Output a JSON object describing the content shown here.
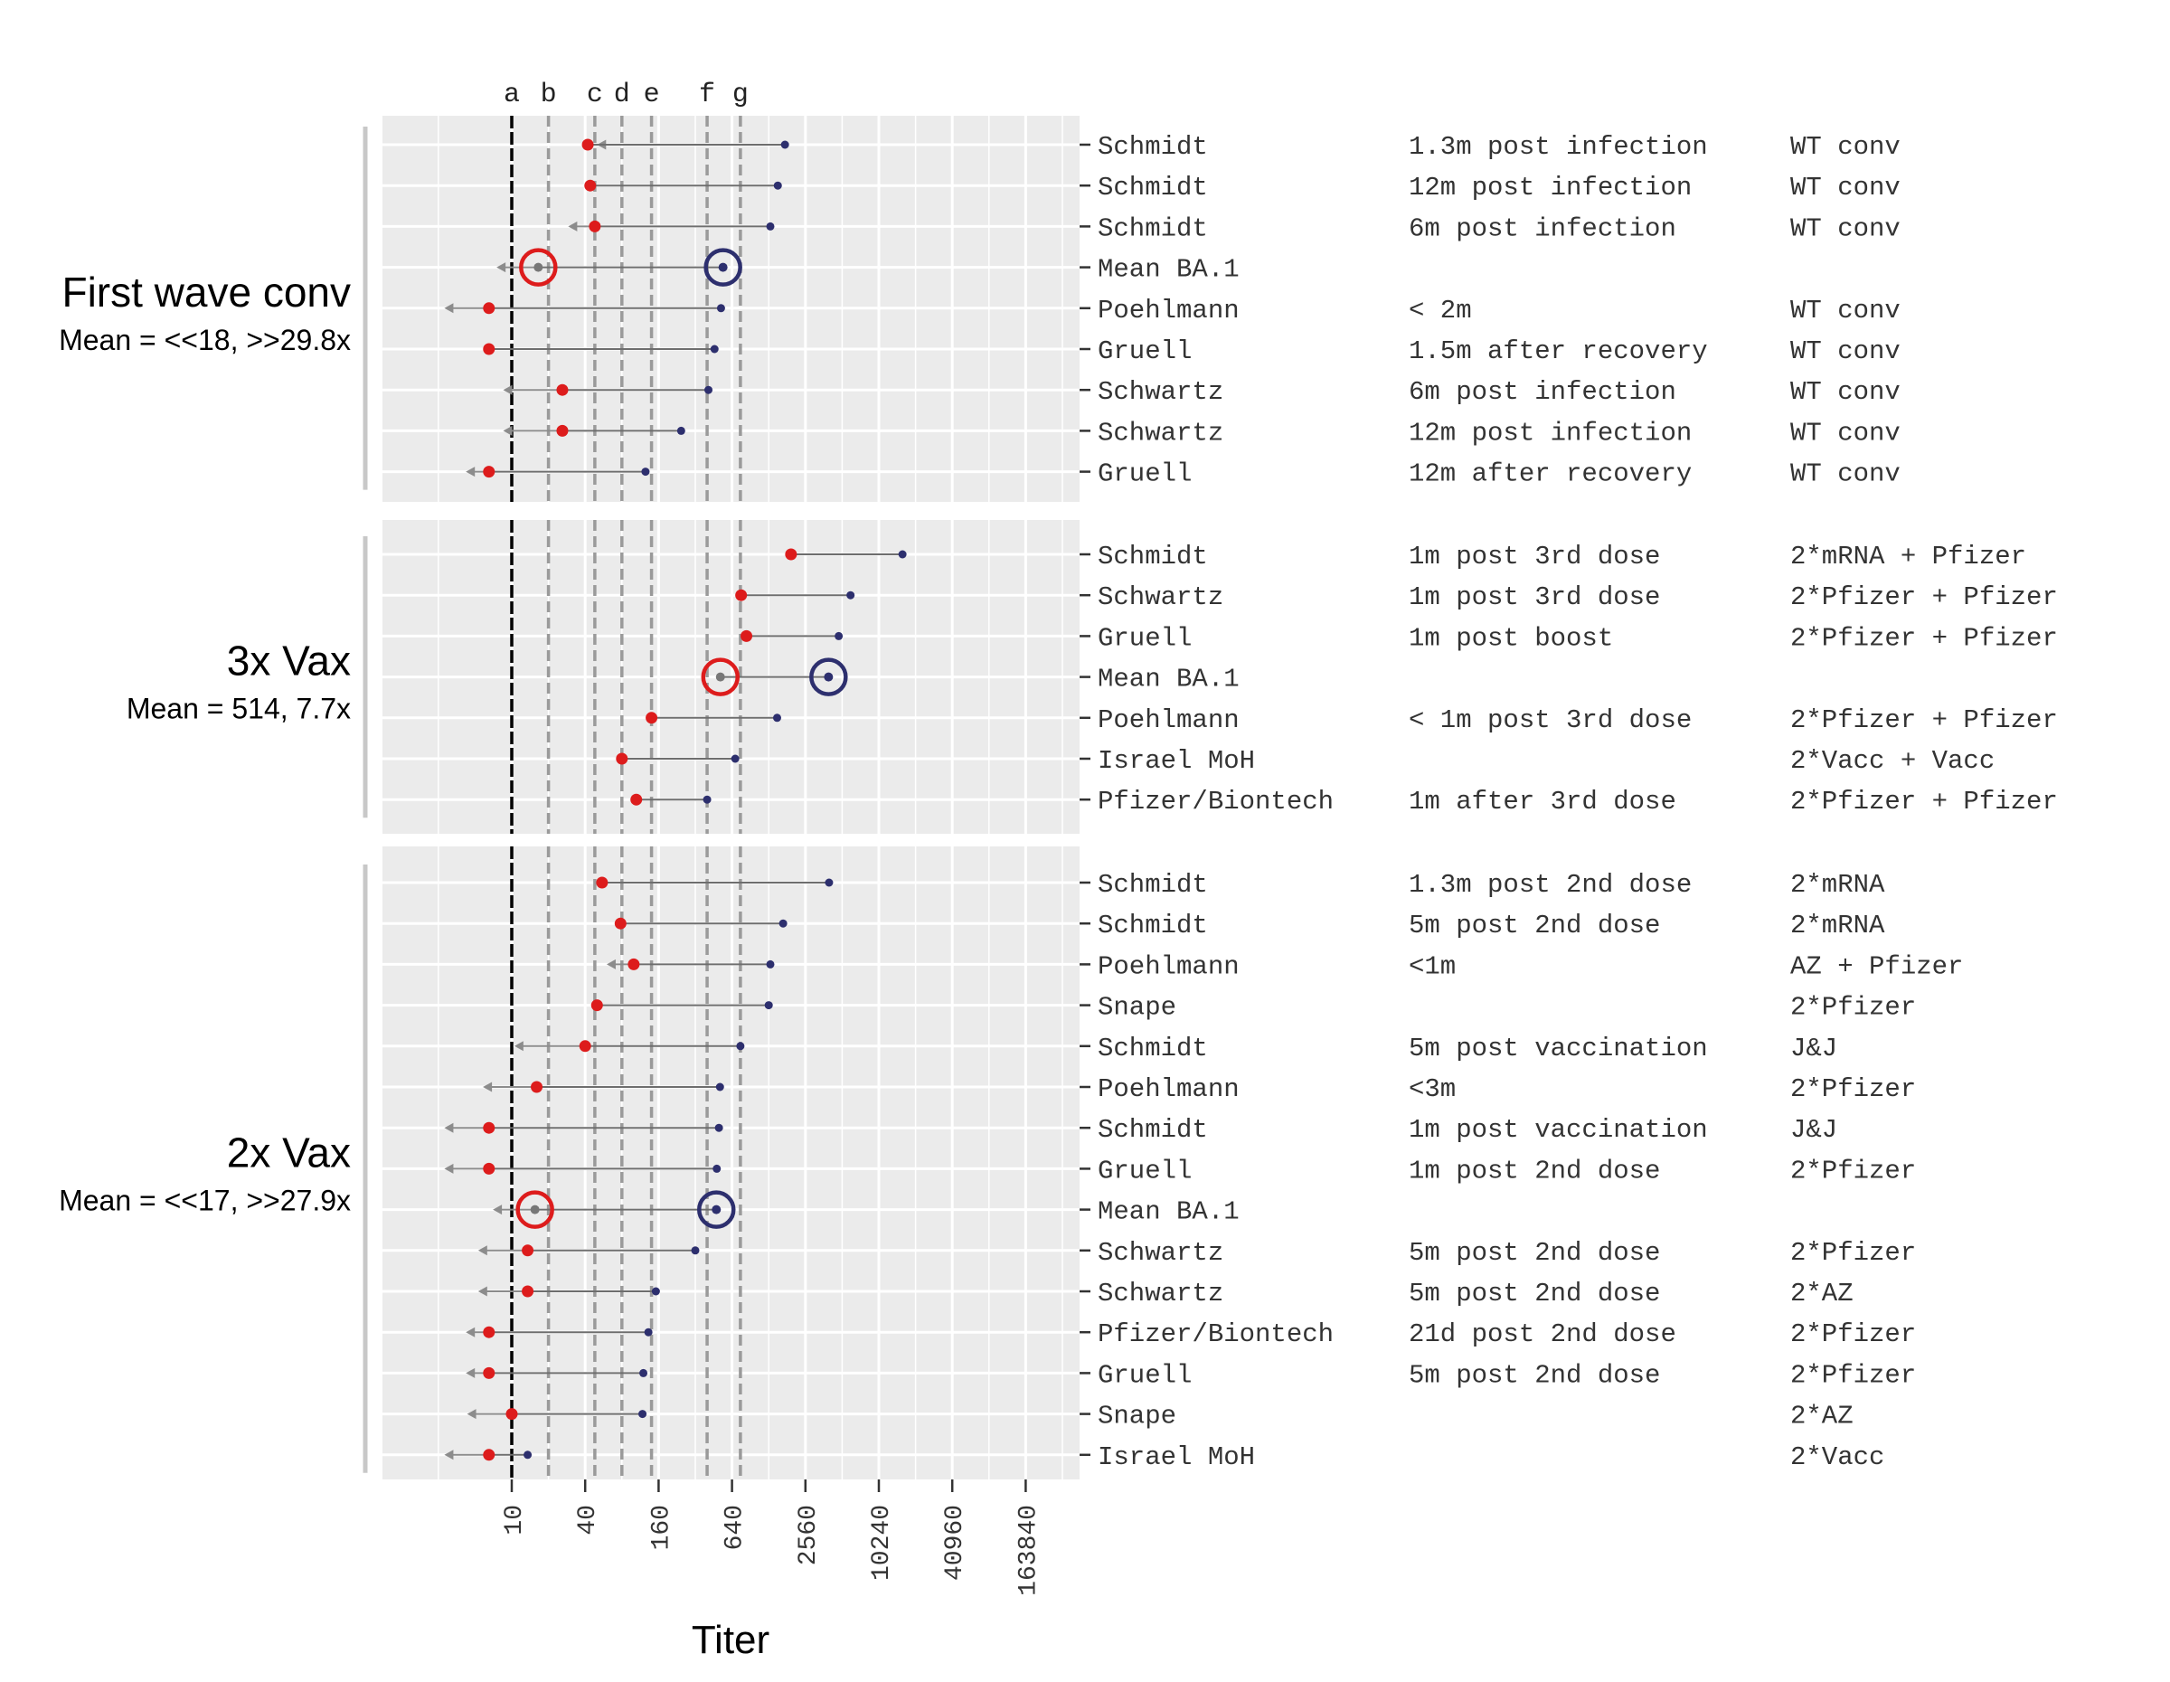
{
  "chart_data": {
    "type": "dumbbell",
    "xlabel": "Titer",
    "x_scale": "log2",
    "x_ticks": [
      10,
      40,
      160,
      640,
      2560,
      10240,
      40960,
      163840
    ],
    "reference_lines": [
      {
        "label": "a",
        "x": 10,
        "style": "solid-black"
      },
      {
        "label": "b",
        "x": 20,
        "style": "dashed-grey"
      },
      {
        "label": "c",
        "x": 48,
        "style": "dashed-grey"
      },
      {
        "label": "d",
        "x": 80,
        "style": "dashed-grey"
      },
      {
        "label": "e",
        "x": 140,
        "style": "dashed-grey"
      },
      {
        "label": "f",
        "x": 400,
        "style": "dashed-grey"
      },
      {
        "label": "g",
        "x": 750,
        "style": "dashed-grey"
      }
    ],
    "colors": {
      "ba1_point": "#dd1c1c",
      "wt_point": "#2d2f6e",
      "segment": "#6e6e6e",
      "arrow": "#8c8c8c",
      "panel_bg": "#ebebeb",
      "grid": "#ffffff"
    },
    "groups": [
      {
        "title": "First wave conv",
        "mean_label": "Mean = <<18, >>29.8x",
        "rows": [
          {
            "study": "Schmidt",
            "timing": "1.3m post infection",
            "regimen": "WT conv",
            "ba1": 42,
            "wt": 1740,
            "arrow_to": 50
          },
          {
            "study": "Schmidt",
            "timing": "12m post infection",
            "regimen": "WT conv",
            "ba1": 44,
            "wt": 1520,
            "arrow_to": null
          },
          {
            "study": "Schmidt",
            "timing": "6m post infection",
            "regimen": "WT conv",
            "ba1": 48,
            "wt": 1320,
            "arrow_to": 29
          },
          {
            "study": "Mean BA.1",
            "timing": "",
            "regimen": "",
            "ba1": 16.5,
            "wt": 540,
            "arrow_to": 7.5,
            "is_mean": true
          },
          {
            "study": "Poehlmann",
            "timing": "< 2m",
            "regimen": "WT conv",
            "ba1": 6.5,
            "wt": 520,
            "arrow_to": 2.8
          },
          {
            "study": "Gruell",
            "timing": "1.5m after recovery",
            "regimen": "WT conv",
            "ba1": 6.5,
            "wt": 460,
            "arrow_to": null
          },
          {
            "study": "Schwartz",
            "timing": "6m post infection",
            "regimen": "WT conv",
            "ba1": 26,
            "wt": 410,
            "arrow_to": 8.5
          },
          {
            "study": "Schwartz",
            "timing": "12m post infection",
            "regimen": "WT conv",
            "ba1": 26,
            "wt": 245,
            "arrow_to": 8.5
          },
          {
            "study": "Gruell",
            "timing": "12m after recovery",
            "regimen": "WT conv",
            "ba1": 6.5,
            "wt": 125,
            "arrow_to": 4.2
          }
        ]
      },
      {
        "title": "3x Vax",
        "mean_label": "Mean = 514, 7.7x",
        "rows": [
          {
            "study": "Schmidt",
            "timing": "1m post 3rd dose",
            "regimen": "2*mRNA + Pfizer",
            "ba1": 1950,
            "wt": 16000,
            "arrow_to": null
          },
          {
            "study": "Schwartz",
            "timing": "1m post 3rd dose",
            "regimen": "2*Pfizer + Pfizer",
            "ba1": 760,
            "wt": 6000,
            "arrow_to": null
          },
          {
            "study": "Gruell",
            "timing": "1m post boost",
            "regimen": "2*Pfizer + Pfizer",
            "ba1": 840,
            "wt": 4800,
            "arrow_to": null
          },
          {
            "study": "Mean BA.1",
            "timing": "",
            "regimen": "",
            "ba1": 514,
            "wt": 3960,
            "arrow_to": null,
            "is_mean": true
          },
          {
            "study": "Poehlmann",
            "timing": "< 1m post 3rd dose",
            "regimen": "2*Pfizer + Pfizer",
            "ba1": 140,
            "wt": 1500,
            "arrow_to": null
          },
          {
            "study": "Israel MoH",
            "timing": "",
            "regimen": "2*Vacc + Vacc",
            "ba1": 80,
            "wt": 680,
            "arrow_to": null
          },
          {
            "study": "Pfizer/Biontech",
            "timing": "1m after 3rd dose",
            "regimen": "2*Pfizer + Pfizer",
            "ba1": 105,
            "wt": 400,
            "arrow_to": null
          }
        ]
      },
      {
        "title": "2x Vax",
        "mean_label": "Mean = <<17, >>27.9x",
        "rows": [
          {
            "study": "Schmidt",
            "timing": "1.3m post 2nd dose",
            "regimen": "2*mRNA",
            "ba1": 55,
            "wt": 4000,
            "arrow_to": null
          },
          {
            "study": "Schmidt",
            "timing": "5m post 2nd dose",
            "regimen": "2*mRNA",
            "ba1": 78,
            "wt": 1680,
            "arrow_to": null
          },
          {
            "study": "Poehlmann",
            "timing": "<1m",
            "regimen": "AZ + Pfizer",
            "ba1": 100,
            "wt": 1320,
            "arrow_to": 60
          },
          {
            "study": "Snape",
            "timing": "",
            "regimen": "2*Pfizer",
            "ba1": 50,
            "wt": 1280,
            "arrow_to": null
          },
          {
            "study": "Schmidt",
            "timing": "5m post vaccination",
            "regimen": "J&J",
            "ba1": 40,
            "wt": 750,
            "arrow_to": 10.5
          },
          {
            "study": "Poehlmann",
            "timing": "<3m",
            "regimen": "2*Pfizer",
            "ba1": 16,
            "wt": 510,
            "arrow_to": 5.8
          },
          {
            "study": "Schmidt",
            "timing": "1m post vaccination",
            "regimen": "J&J",
            "ba1": 6.5,
            "wt": 500,
            "arrow_to": 2.8
          },
          {
            "study": "Gruell",
            "timing": "1m post 2nd dose",
            "regimen": "2*Pfizer",
            "ba1": 6.5,
            "wt": 480,
            "arrow_to": 2.8
          },
          {
            "study": "Mean BA.1",
            "timing": "",
            "regimen": "",
            "ba1": 15.5,
            "wt": 476,
            "arrow_to": 7.0,
            "is_mean": true
          },
          {
            "study": "Schwartz",
            "timing": "5m post 2nd dose",
            "regimen": "2*Pfizer",
            "ba1": 13.5,
            "wt": 320,
            "arrow_to": 5.3
          },
          {
            "study": "Schwartz",
            "timing": "5m post 2nd dose",
            "regimen": "2*AZ",
            "ba1": 13.5,
            "wt": 152,
            "arrow_to": 5.3
          },
          {
            "study": "Pfizer/Biontech",
            "timing": "21d post 2nd dose",
            "regimen": "2*Pfizer",
            "ba1": 6.5,
            "wt": 132,
            "arrow_to": 4.2
          },
          {
            "study": "Gruell",
            "timing": "5m post 2nd dose",
            "regimen": "2*Pfizer",
            "ba1": 6.5,
            "wt": 120,
            "arrow_to": 4.2
          },
          {
            "study": "Snape",
            "timing": "",
            "regimen": "2*AZ",
            "ba1": 10,
            "wt": 118,
            "arrow_to": 4.3
          },
          {
            "study": "Israel MoH",
            "timing": "",
            "regimen": "2*Vacc",
            "ba1": 6.5,
            "wt": 13.5,
            "arrow_to": 2.8
          }
        ]
      }
    ]
  }
}
